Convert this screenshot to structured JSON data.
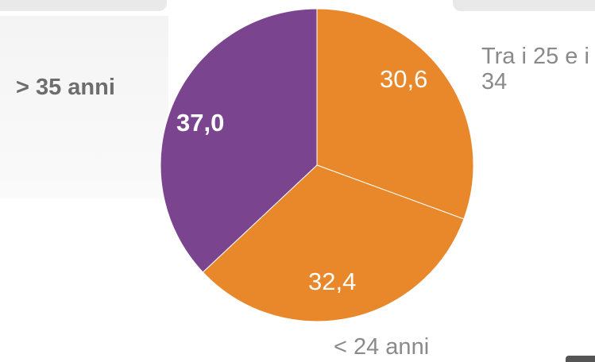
{
  "chart_data": {
    "type": "pie",
    "categories": [
      "Tra i 25 e i 34",
      "< 24 anni",
      "> 35 anni"
    ],
    "values": [
      30.6,
      32.4,
      37.0
    ],
    "value_labels": [
      "30,6",
      "32,4",
      "37,0"
    ],
    "colors": [
      "#e8882b",
      "#e8882b",
      "#7a448f"
    ]
  }
}
